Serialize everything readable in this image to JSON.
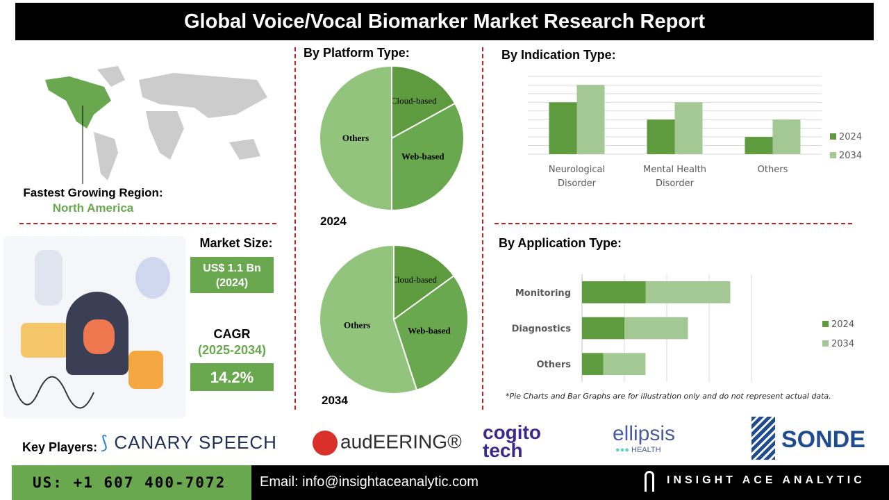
{
  "title": "Global Voice/Vocal Biomarker Market Research Report",
  "region": {
    "label": "Fastest Growing Region:",
    "value": "North America"
  },
  "market_size": {
    "label": "Market Size:",
    "value": "US$ 1.1 Bn",
    "year": "(2024)"
  },
  "cagr": {
    "label": "CAGR",
    "period": "(2025-2034)",
    "value": "14.2%"
  },
  "colors": {
    "dark_green": "#5e9a3e",
    "light_green": "#a4c893",
    "mid_green": "#6aa84f",
    "accent_red": "#b22222"
  },
  "chart_data": [
    {
      "type": "pie",
      "title": "By Platform Type:",
      "year_label": "2024",
      "slices": [
        {
          "label": "Cloud-based",
          "value": 17
        },
        {
          "label": "Web-based",
          "value": 33
        },
        {
          "label": "Others",
          "value": 50
        }
      ]
    },
    {
      "type": "pie",
      "year_label": "2034",
      "slices": [
        {
          "label": "Cloud-based",
          "value": 15
        },
        {
          "label": "Web-based",
          "value": 30
        },
        {
          "label": "Others",
          "value": 55
        }
      ]
    },
    {
      "type": "bar",
      "title": "By  Indication Type:",
      "categories": [
        "Neurological Disorder",
        "Mental Health Disorder",
        "Others"
      ],
      "series": [
        {
          "name": "2024",
          "values": [
            6,
            4,
            2
          ]
        },
        {
          "name": "2034",
          "values": [
            8,
            6,
            4
          ]
        }
      ],
      "ylim": [
        0,
        9
      ],
      "grid": true,
      "legend": "right"
    },
    {
      "type": "bar",
      "orientation": "horizontal",
      "stacked": true,
      "title": "By Application Type:",
      "categories": [
        "Monitoring",
        "Diagnostics",
        "Others"
      ],
      "series": [
        {
          "name": "2024",
          "values": [
            1.5,
            1,
            0.5
          ]
        },
        {
          "name": "2034",
          "values": [
            2,
            1.5,
            1
          ]
        }
      ],
      "xlim": [
        0,
        4
      ],
      "grid": true,
      "legend": "right"
    }
  ],
  "note": "*Pie Charts and Bar Graphs are for illustration only and do not represent actual data.",
  "key_players": {
    "label": "Key Players:",
    "logos": [
      "CANARY SPEECH",
      "audEERING®",
      "cogito tech",
      "ellipsis",
      "HEALTH",
      "SONDE"
    ]
  },
  "footer": {
    "phone": "US: +1 607 400-7072",
    "email": "Email: info@insightaceanalytic.com",
    "brand": "INSIGHT ACE ANALYTIC"
  }
}
